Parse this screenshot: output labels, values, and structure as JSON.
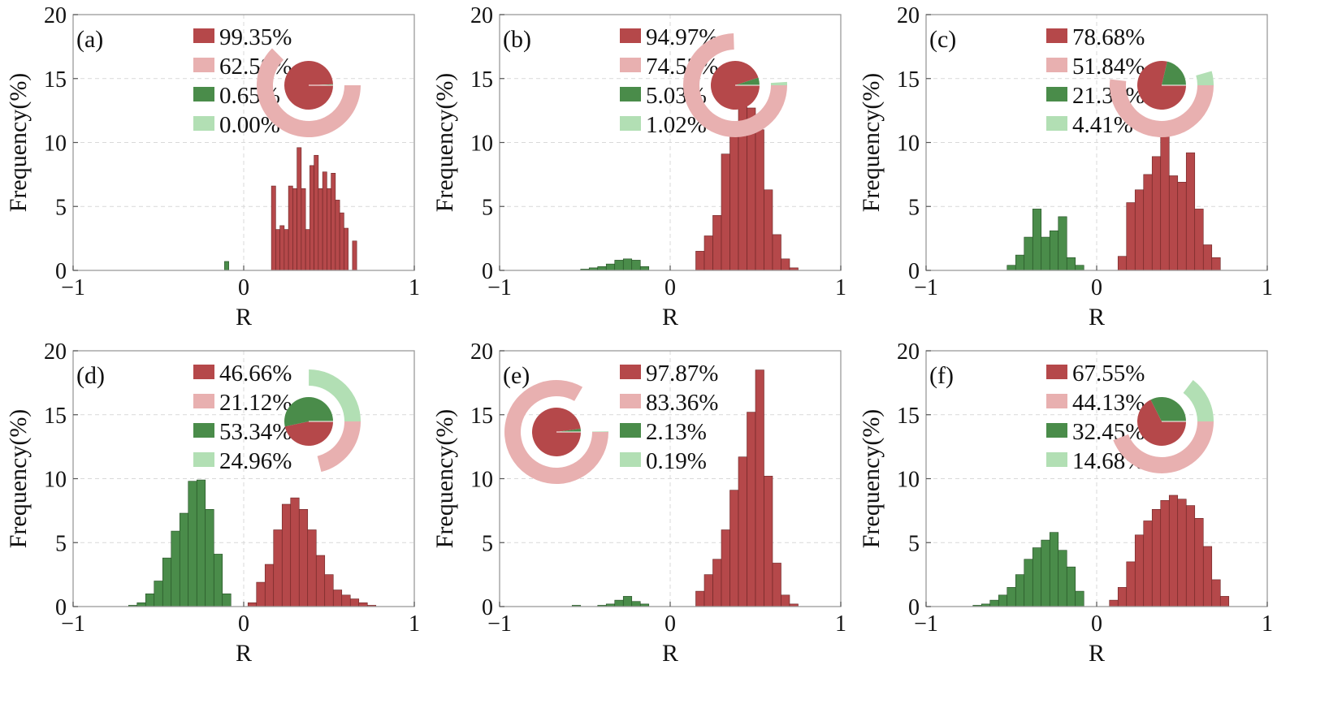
{
  "colors": {
    "positive_sig": "#b5484a",
    "positive_all": "#e8b0b0",
    "negative_sig": "#4a8c4a",
    "negative_all": "#b2dfb4"
  },
  "chart_data": [
    {
      "panel": "(a)",
      "type": "bar",
      "xlabel": "R",
      "ylabel": "Frequency(%)",
      "xlim": [
        -1,
        1
      ],
      "ylim": [
        0,
        20
      ],
      "xticks": [
        "−1",
        "0",
        "1"
      ],
      "yticks": [
        "0",
        "5",
        "10",
        "15",
        "20"
      ],
      "grid": true,
      "bin_width": 0.025,
      "legend": [
        "99.35%",
        "62.58%",
        "0.65%",
        "0.00%"
      ],
      "legend_position": "top-center",
      "pie": {
        "inner": [
          99.35,
          0.65
        ],
        "outer_red": 62.58,
        "outer_green": 0.0
      },
      "pie_position": "top-right",
      "negative": {
        "x": [
          -0.1
        ],
        "y": [
          0.7
        ]
      },
      "positive": {
        "x": [
          0.175,
          0.2,
          0.225,
          0.25,
          0.275,
          0.3,
          0.325,
          0.35,
          0.375,
          0.4,
          0.425,
          0.45,
          0.475,
          0.5,
          0.525,
          0.55,
          0.575,
          0.6,
          0.625,
          0.65
        ],
        "y": [
          6.6,
          3.2,
          3.5,
          3.2,
          6.6,
          6.4,
          9.6,
          6.4,
          3.2,
          8.2,
          9.0,
          6.4,
          7.7,
          6.4,
          7.6,
          5.5,
          4.5,
          3.3,
          0,
          2.3
        ]
      }
    },
    {
      "panel": "(b)",
      "type": "bar",
      "xlabel": "R",
      "ylabel": "Frequency(%)",
      "xlim": [
        -1,
        1
      ],
      "ylim": [
        0,
        20
      ],
      "xticks": [
        "−1",
        "0",
        "1"
      ],
      "yticks": [
        "0",
        "5",
        "10",
        "15",
        "20"
      ],
      "grid": true,
      "bin_width": 0.05,
      "legend": [
        "94.97%",
        "74.52%",
        "5.03%",
        "1.02%"
      ],
      "legend_position": "top-center",
      "pie": {
        "inner": [
          94.97,
          5.03
        ],
        "outer_red": 74.52,
        "outer_green": 1.02
      },
      "pie_position": "top-right",
      "negative": {
        "x": [
          -0.5,
          -0.45,
          -0.4,
          -0.35,
          -0.3,
          -0.25,
          -0.2,
          -0.15
        ],
        "y": [
          0.1,
          0.2,
          0.3,
          0.5,
          0.8,
          0.9,
          0.8,
          0.3
        ]
      },
      "positive": {
        "x": [
          0.175,
          0.225,
          0.275,
          0.325,
          0.375,
          0.425,
          0.475,
          0.525,
          0.575,
          0.625,
          0.675,
          0.725
        ],
        "y": [
          1.5,
          2.7,
          4.3,
          9.1,
          11.4,
          12.8,
          12.7,
          11.0,
          6.3,
          2.8,
          0.9,
          0.2
        ]
      }
    },
    {
      "panel": "(c)",
      "type": "bar",
      "xlabel": "R",
      "ylabel": "Frequency(%)",
      "xlim": [
        -1,
        1
      ],
      "ylim": [
        0,
        20
      ],
      "xticks": [
        "−1",
        "0",
        "1"
      ],
      "yticks": [
        "0",
        "5",
        "10",
        "15",
        "20"
      ],
      "grid": true,
      "bin_width": 0.05,
      "legend": [
        "78.68%",
        "51.84%",
        "21.32%",
        "4.41%"
      ],
      "legend_position": "top-center",
      "pie": {
        "inner": [
          78.68,
          21.32
        ],
        "outer_red": 51.84,
        "outer_green": 4.41
      },
      "pie_position": "top-right",
      "negative": {
        "x": [
          -0.5,
          -0.45,
          -0.4,
          -0.35,
          -0.3,
          -0.25,
          -0.2,
          -0.15,
          -0.1
        ],
        "y": [
          0.4,
          1.2,
          2.6,
          4.8,
          2.6,
          3.1,
          4.2,
          1.0,
          0.4
        ]
      },
      "positive": {
        "x": [
          0.15,
          0.2,
          0.25,
          0.3,
          0.35,
          0.4,
          0.45,
          0.5,
          0.55,
          0.6,
          0.65,
          0.7
        ],
        "y": [
          1.1,
          5.3,
          6.3,
          7.5,
          8.9,
          10.5,
          7.4,
          6.9,
          9.2,
          4.8,
          2.0,
          1.0
        ]
      }
    },
    {
      "panel": "(d)",
      "type": "bar",
      "xlabel": "R",
      "ylabel": "Frequency(%)",
      "xlim": [
        -1,
        1
      ],
      "ylim": [
        0,
        20
      ],
      "xticks": [
        "−1",
        "0",
        "1"
      ],
      "yticks": [
        "0",
        "5",
        "10",
        "15",
        "20"
      ],
      "grid": true,
      "bin_width": 0.05,
      "legend": [
        "46.66%",
        "21.12%",
        "53.34%",
        "24.96%"
      ],
      "legend_position": "top-center",
      "pie": {
        "inner": [
          46.66,
          53.34
        ],
        "outer_red": 21.12,
        "outer_green": 24.96
      },
      "pie_position": "top-right",
      "negative": {
        "x": [
          -0.65,
          -0.6,
          -0.55,
          -0.5,
          -0.45,
          -0.4,
          -0.35,
          -0.3,
          -0.25,
          -0.2,
          -0.15,
          -0.1
        ],
        "y": [
          0.1,
          0.3,
          1.0,
          2.0,
          3.8,
          5.9,
          7.3,
          9.8,
          9.9,
          7.6,
          4.1,
          1.0
        ]
      },
      "positive": {
        "x": [
          0.05,
          0.1,
          0.15,
          0.2,
          0.25,
          0.3,
          0.35,
          0.4,
          0.45,
          0.5,
          0.55,
          0.6,
          0.65,
          0.7,
          0.75
        ],
        "y": [
          0.3,
          1.9,
          3.3,
          6.0,
          8.0,
          8.5,
          7.6,
          6.0,
          4.0,
          2.5,
          1.3,
          0.9,
          0.6,
          0.3,
          0.1
        ]
      }
    },
    {
      "panel": "(e)",
      "type": "bar",
      "xlabel": "R",
      "ylabel": "Frequency(%)",
      "xlim": [
        -1,
        1
      ],
      "ylim": [
        0,
        20
      ],
      "xticks": [
        "−1",
        "0",
        "1"
      ],
      "yticks": [
        "0",
        "5",
        "10",
        "15",
        "20"
      ],
      "grid": true,
      "bin_width": 0.05,
      "legend": [
        "97.87%",
        "83.36%",
        "2.13%",
        "0.19%"
      ],
      "legend_position": "top-center",
      "pie": {
        "inner": [
          97.87,
          2.13
        ],
        "outer_red": 83.36,
        "outer_green": 0.19
      },
      "pie_position": "top-left",
      "negative": {
        "x": [
          -0.55,
          -0.4,
          -0.35,
          -0.3,
          -0.25,
          -0.2,
          -0.15
        ],
        "y": [
          0.1,
          0.1,
          0.2,
          0.5,
          0.8,
          0.4,
          0.2
        ]
      },
      "positive": {
        "x": [
          0.175,
          0.225,
          0.275,
          0.325,
          0.375,
          0.425,
          0.475,
          0.525,
          0.575,
          0.625,
          0.675,
          0.725
        ],
        "y": [
          1.2,
          2.5,
          3.7,
          6.0,
          9.1,
          11.7,
          15.2,
          18.5,
          10.2,
          3.4,
          0.9,
          0.2
        ]
      }
    },
    {
      "panel": "(f)",
      "type": "bar",
      "xlabel": "R",
      "ylabel": "Frequency(%)",
      "xlim": [
        -1,
        1
      ],
      "ylim": [
        0,
        20
      ],
      "xticks": [
        "−1",
        "0",
        "1"
      ],
      "yticks": [
        "0",
        "5",
        "10",
        "15",
        "20"
      ],
      "grid": true,
      "bin_width": 0.05,
      "legend": [
        "67.55%",
        "44.13%",
        "32.45%",
        "14.68%"
      ],
      "legend_position": "top-center",
      "pie": {
        "inner": [
          67.55,
          32.45
        ],
        "outer_red": 44.13,
        "outer_green": 14.68
      },
      "pie_position": "top-right",
      "negative": {
        "x": [
          -0.7,
          -0.65,
          -0.6,
          -0.55,
          -0.5,
          -0.45,
          -0.4,
          -0.35,
          -0.3,
          -0.25,
          -0.2,
          -0.15,
          -0.1
        ],
        "y": [
          0.1,
          0.2,
          0.5,
          0.9,
          1.5,
          2.5,
          3.7,
          4.6,
          5.2,
          5.8,
          4.4,
          3.1,
          1.2
        ]
      },
      "positive": {
        "x": [
          0.1,
          0.15,
          0.2,
          0.25,
          0.3,
          0.35,
          0.4,
          0.45,
          0.5,
          0.55,
          0.6,
          0.65,
          0.7,
          0.75
        ],
        "y": [
          0.5,
          1.5,
          3.5,
          5.6,
          6.7,
          7.6,
          8.3,
          8.7,
          8.4,
          7.9,
          6.9,
          4.7,
          2.1,
          0.8
        ]
      }
    }
  ]
}
